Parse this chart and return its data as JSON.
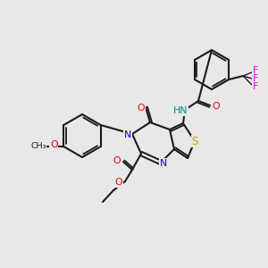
{
  "background_color": "#e8e8e8",
  "bond_color": "#1a1a1a",
  "colors": {
    "N": "#0000ee",
    "O": "#ee0000",
    "S": "#bbaa00",
    "F": "#ee00ee",
    "NH": "#008888",
    "C": "#1a1a1a"
  },
  "figsize": [
    3.0,
    3.0
  ],
  "dpi": 100
}
